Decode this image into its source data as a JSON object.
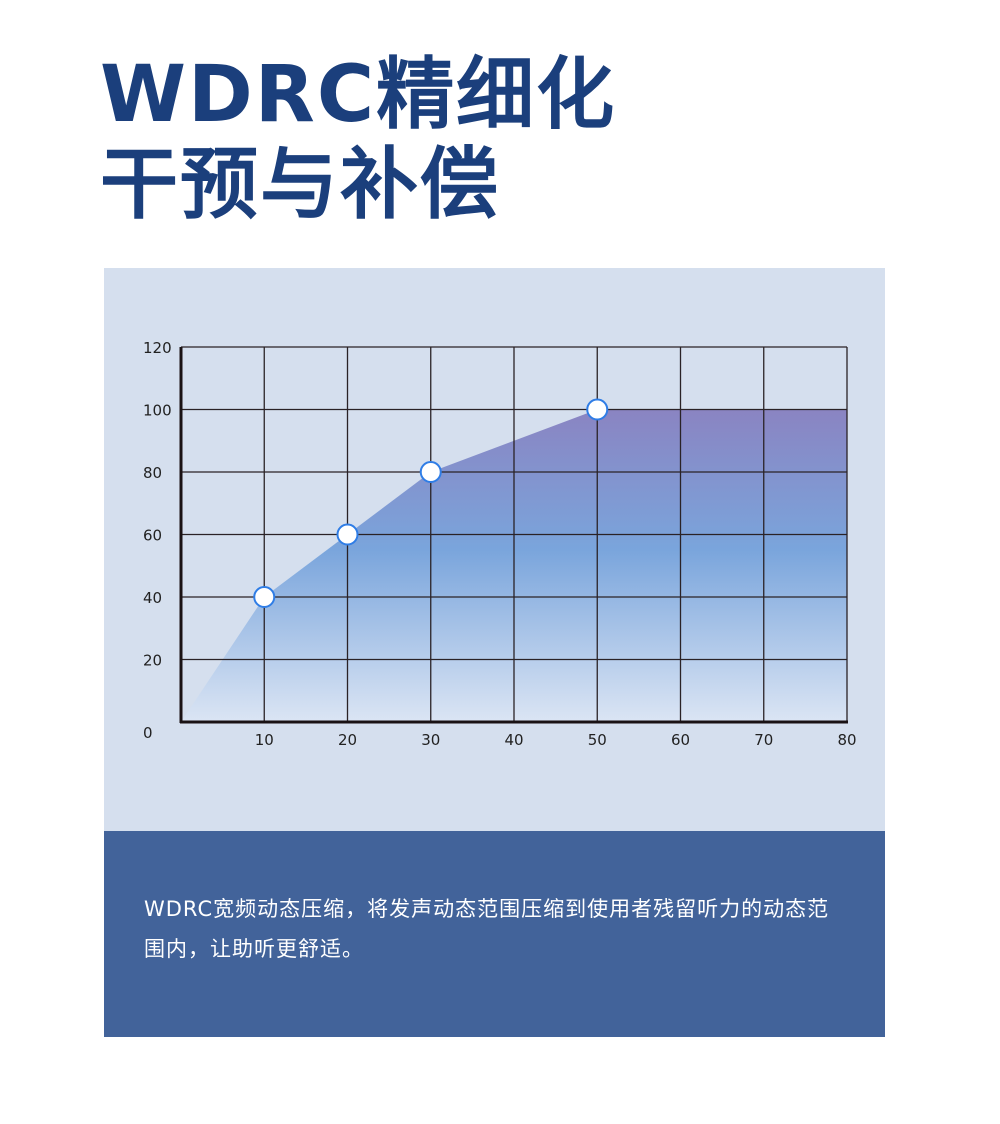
{
  "title": {
    "line1": "WDRC精细化",
    "line2": "干预与补偿"
  },
  "description": "WDRC宽频动态压缩，将发声动态范围压缩到使用者残留听力的动态范围内，让助听更舒适。",
  "colors": {
    "title": "#1b3f7c",
    "panel": "#d5dfee",
    "description_bg": "#42639a",
    "fill_top": "#8a84c2",
    "fill_mid": "#7aa5dc",
    "fill_bottom": "#dbe5f4",
    "marker_stroke": "#2f7de6"
  },
  "chart_data": {
    "type": "area",
    "x": [
      0,
      10,
      20,
      30,
      40,
      50,
      80
    ],
    "y": [
      0,
      40,
      60,
      80,
      90,
      100,
      100
    ],
    "markers": [
      [
        10,
        40
      ],
      [
        20,
        60
      ],
      [
        30,
        80
      ],
      [
        50,
        100
      ]
    ],
    "xlim": [
      0,
      80
    ],
    "ylim": [
      0,
      120
    ],
    "xticks": [
      "10",
      "20",
      "30",
      "40",
      "50",
      "60",
      "70",
      "80"
    ],
    "yticks": [
      "0",
      "20",
      "40",
      "60",
      "80",
      "100",
      "120"
    ],
    "grid": true,
    "title": "",
    "xlabel": "",
    "ylabel": ""
  }
}
